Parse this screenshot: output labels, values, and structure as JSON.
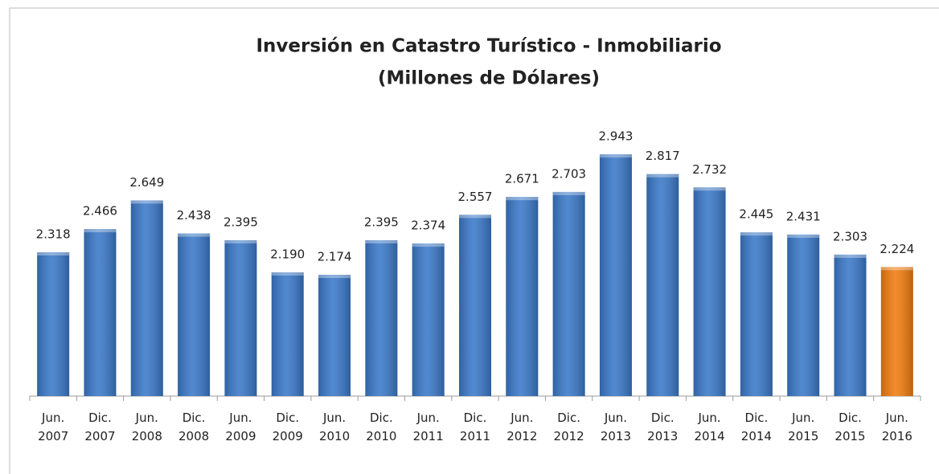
{
  "chart_data": {
    "type": "bar",
    "title": [
      "Inversión en Catastro Turístico - Inmobiliario",
      "(Millones de Dólares)"
    ],
    "categories": [
      "Jun.\n2007",
      "Dic.\n2007",
      "Jun.\n2008",
      "Dic.\n2008",
      "Jun.\n2009",
      "Dic.\n2009",
      "Jun.\n2010",
      "Dic.\n2010",
      "Jun.\n2011",
      "Dic.\n2011",
      "Jun.\n2012",
      "Dic.\n2012",
      "Jun.\n2013",
      "Dic.\n2013",
      "Jun.\n2014",
      "Dic.\n2014",
      "Jun.\n2015",
      "Dic.\n2015",
      "Jun.\n2016"
    ],
    "values": [
      2.318,
      2.466,
      2.649,
      2.438,
      2.395,
      2.19,
      2.174,
      2.395,
      2.374,
      2.557,
      2.671,
      2.703,
      2.943,
      2.817,
      2.732,
      2.445,
      2.431,
      2.303,
      2.224
    ],
    "value_labels": [
      "2.318",
      "2.466",
      "2.649",
      "2.438",
      "2.395",
      "2.190",
      "2.174",
      "2.395",
      "2.374",
      "2.557",
      "2.671",
      "2.703",
      "2.943",
      "2.817",
      "2.732",
      "2.445",
      "2.431",
      "2.303",
      "2.224"
    ],
    "colors": [
      "#3a78c8",
      "#3a78c8",
      "#3a78c8",
      "#3a78c8",
      "#3a78c8",
      "#3a78c8",
      "#3a78c8",
      "#3a78c8",
      "#3a78c8",
      "#3a78c8",
      "#3a78c8",
      "#3a78c8",
      "#3a78c8",
      "#3a78c8",
      "#3a78c8",
      "#3a78c8",
      "#3a78c8",
      "#3a78c8",
      "#f07c10"
    ],
    "ylim": [
      1.4,
      3.0
    ]
  }
}
